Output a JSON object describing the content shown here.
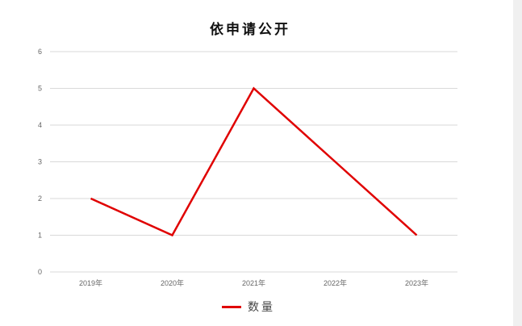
{
  "chart_data": {
    "type": "line",
    "title": "依申请公开",
    "categories": [
      "2019年",
      "2020年",
      "2021年",
      "2022年",
      "2023年"
    ],
    "series": [
      {
        "name": "数量",
        "values": [
          2,
          1,
          5,
          3,
          1
        ],
        "color": "#e00000"
      }
    ],
    "ylim": [
      0,
      6
    ],
    "yticks": [
      0,
      1,
      2,
      3,
      4,
      5,
      6
    ],
    "grid": true,
    "legend": "bottom"
  }
}
